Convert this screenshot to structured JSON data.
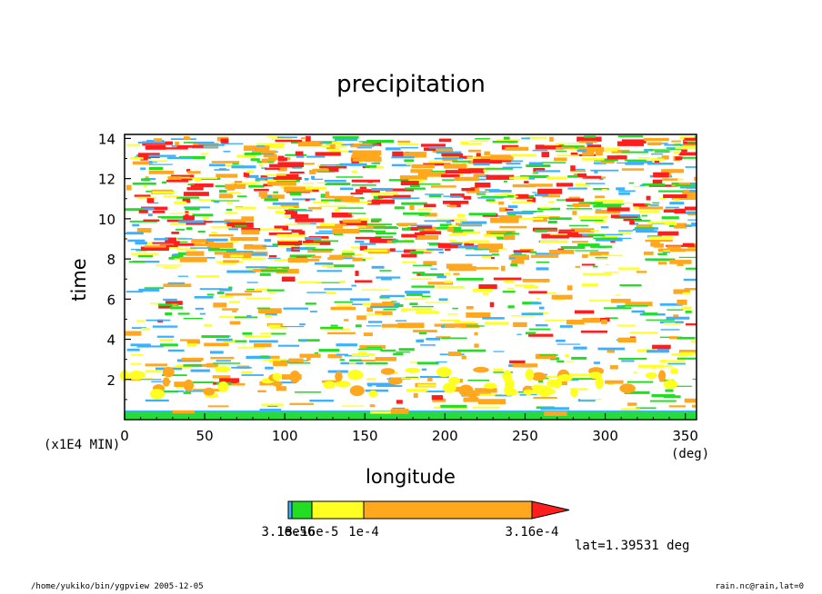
{
  "chart_data": {
    "type": "heatmap",
    "title": "precipitation",
    "xlabel": "longitude",
    "ylabel": "time",
    "x_unit": "(deg)",
    "y_unit": "(x1E4 MIN)",
    "xlim": [
      0,
      357
    ],
    "ylim": [
      0,
      14.2
    ],
    "x_ticks": [
      0,
      50,
      100,
      150,
      200,
      250,
      300,
      350
    ],
    "y_ticks": [
      2,
      4,
      6,
      8,
      10,
      12,
      14
    ],
    "colorbar": {
      "levels": [
        "3.16e-6",
        "1e-5",
        "3.16e-5",
        "1e-4",
        "3.16e-4"
      ],
      "labels_shown": [
        "3.16e-6",
        "1e-5",
        "3.16e-5",
        "1e-4",
        "3.16e-4"
      ],
      "colors": [
        "#00aaff",
        "#00dd00",
        "#ffff00",
        "#ffaa00",
        "#ff0000"
      ],
      "extend": "max"
    },
    "annotation": "lat=1.39531 deg"
  },
  "footer": {
    "left": "/home/yukiko/bin/ygpview  2005-12-05",
    "right": "rain.nc@rain,lat=0"
  },
  "colors": {
    "background": "#ffffff",
    "level1": "#3bb0ff",
    "level2": "#22dd22",
    "level3": "#ffff22",
    "level4": "#ffa81e",
    "level5": "#ff1e1e"
  }
}
